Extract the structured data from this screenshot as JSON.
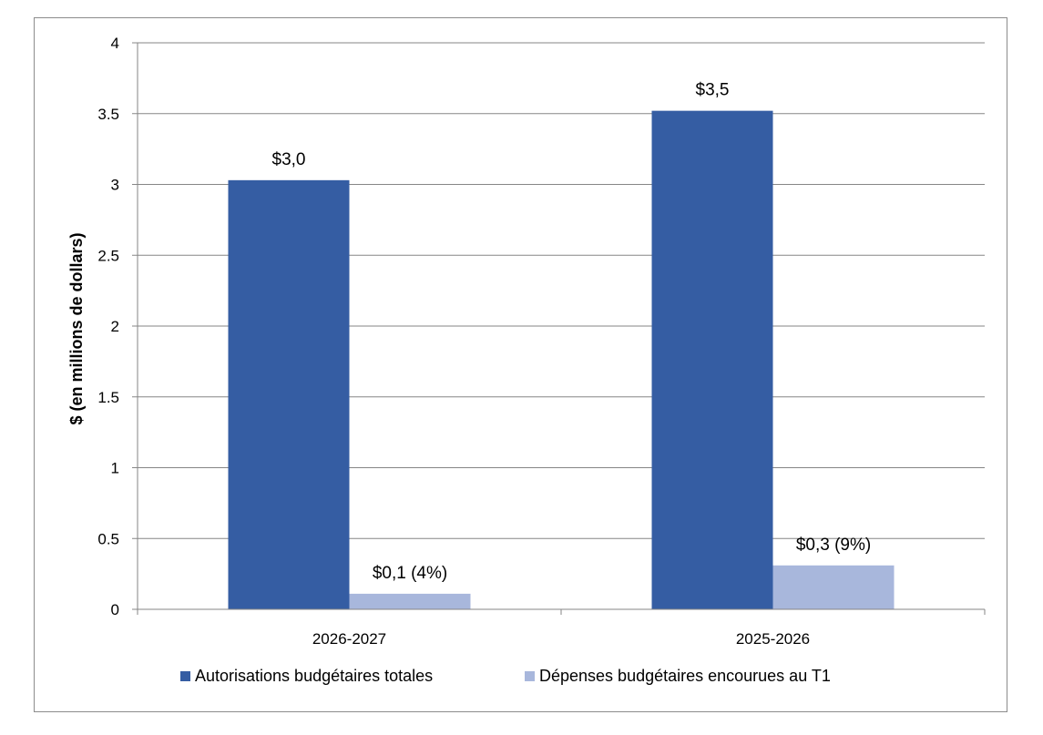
{
  "chart_data": {
    "type": "bar",
    "categories": [
      "2026-2027",
      "2025-2026"
    ],
    "series": [
      {
        "name": "Autorisations budgétaires totales",
        "color": "#355DA3",
        "values": [
          3.03,
          3.52
        ],
        "labels": [
          "$3,0",
          "$3,5"
        ]
      },
      {
        "name": "Dépenses budgétaires encourues au T1",
        "color": "#A8B7DC",
        "values": [
          0.11,
          0.31
        ],
        "labels": [
          "$0,1 (4%)",
          "$0,3 (9%)"
        ]
      }
    ],
    "ylabel": "$ (en millions de dollars)",
    "xlabel": "",
    "ylim": [
      0,
      4
    ],
    "yticks": [
      0,
      0.5,
      1,
      1.5,
      2,
      2.5,
      3,
      3.5,
      4
    ],
    "ytick_labels": [
      "0",
      "0.5",
      "1",
      "1.5",
      "2",
      "2.5",
      "3",
      "3.5",
      "4"
    ],
    "grid": true,
    "legend": "bottom",
    "colors": {
      "grid": "#868686",
      "axis": "#868686",
      "frame": "#8c8c8c"
    }
  }
}
